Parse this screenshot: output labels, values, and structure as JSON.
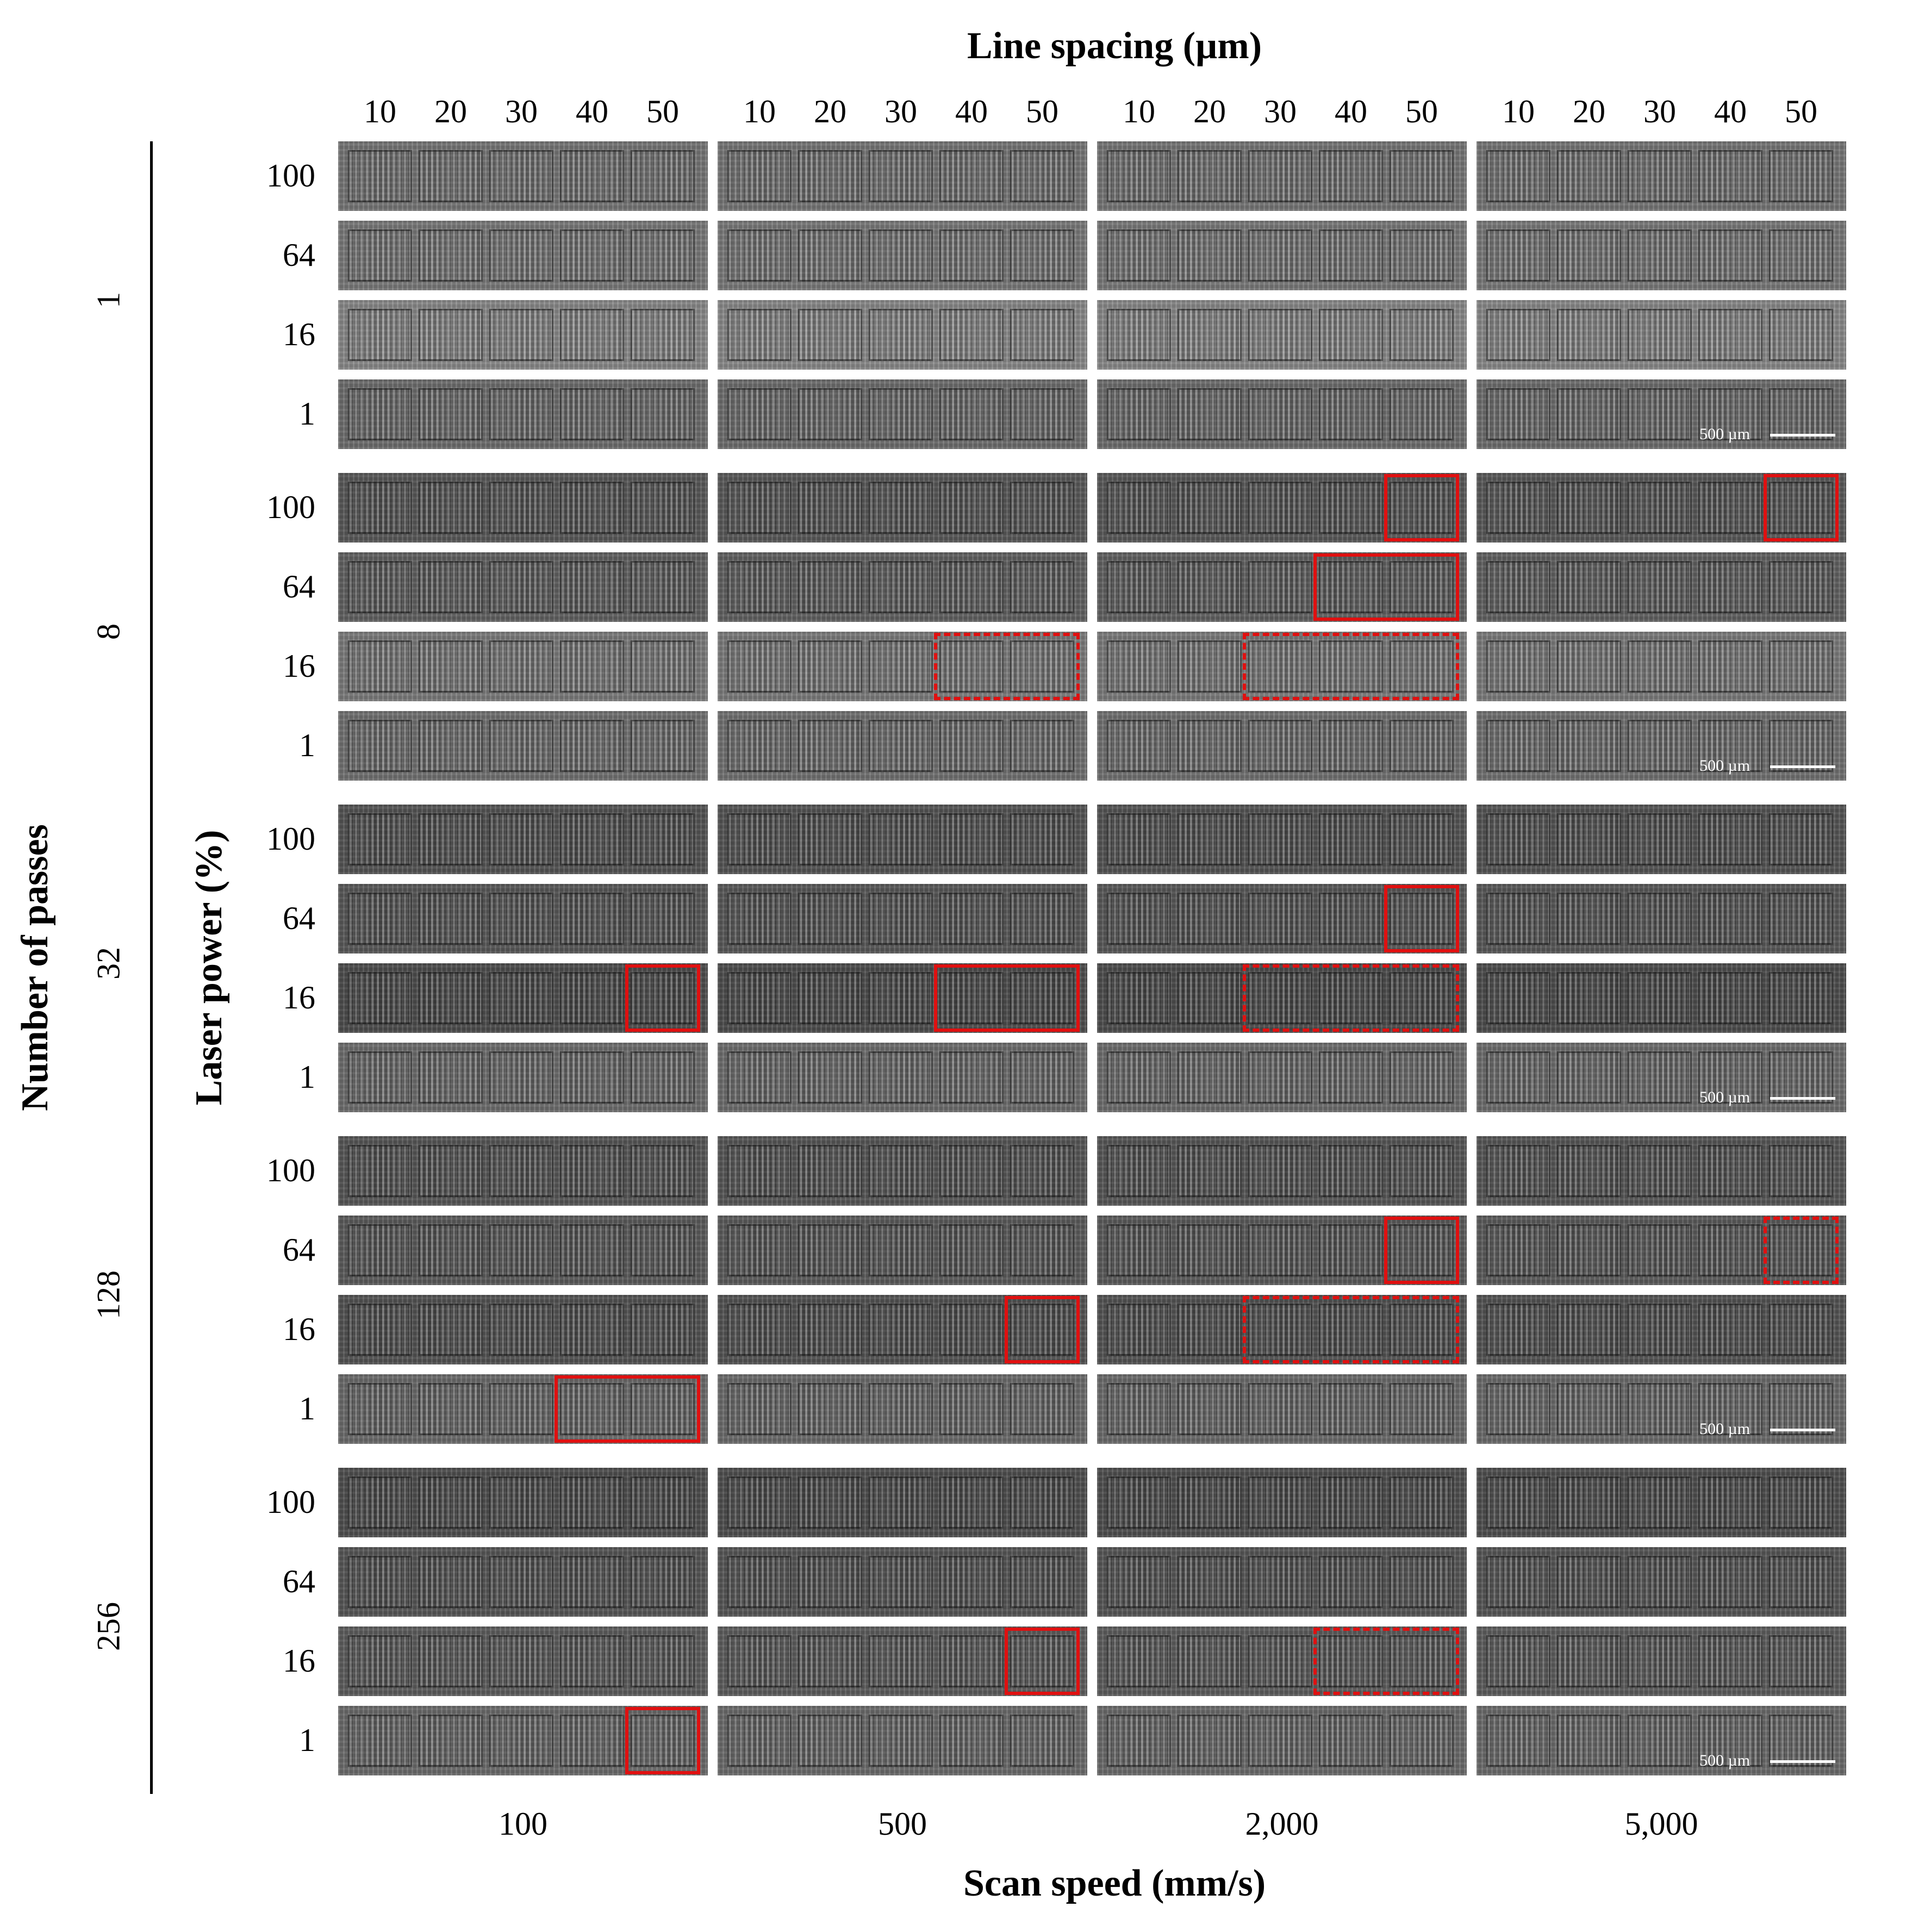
{
  "titles": {
    "top": "Line spacing (µm)",
    "bottom": "Scan speed (mm/s)",
    "left_outer": "Number of passes",
    "left_inner": "Laser power (%)"
  },
  "line_spacings": [
    "10",
    "20",
    "30",
    "40",
    "50"
  ],
  "scan_speeds": [
    "100",
    "500",
    "2,000",
    "5,000"
  ],
  "number_of_passes": [
    "1",
    "8",
    "32",
    "128",
    "256"
  ],
  "laser_powers": [
    "100",
    "64",
    "16",
    "1"
  ],
  "scale_bar_label": "500 µm",
  "highlight_legend": {
    "solid": "solid red box",
    "dashed": "dashed red box"
  },
  "highlights": [
    {
      "passes": "8",
      "power": "100",
      "speed": "2,000",
      "spacings": [
        "50"
      ],
      "style": "solid"
    },
    {
      "passes": "8",
      "power": "100",
      "speed": "5,000",
      "spacings": [
        "50"
      ],
      "style": "solid"
    },
    {
      "passes": "8",
      "power": "64",
      "speed": "2,000",
      "spacings": [
        "40",
        "50"
      ],
      "style": "solid"
    },
    {
      "passes": "8",
      "power": "16",
      "speed": "500",
      "spacings": [
        "40",
        "50"
      ],
      "style": "dashed"
    },
    {
      "passes": "8",
      "power": "16",
      "speed": "2,000",
      "spacings": [
        "30",
        "40",
        "50"
      ],
      "style": "dashed"
    },
    {
      "passes": "32",
      "power": "64",
      "speed": "2,000",
      "spacings": [
        "50"
      ],
      "style": "solid"
    },
    {
      "passes": "32",
      "power": "16",
      "speed": "100",
      "spacings": [
        "50"
      ],
      "style": "solid"
    },
    {
      "passes": "32",
      "power": "16",
      "speed": "500",
      "spacings": [
        "40",
        "50"
      ],
      "style": "solid"
    },
    {
      "passes": "32",
      "power": "16",
      "speed": "2,000",
      "spacings": [
        "30",
        "40",
        "50"
      ],
      "style": "dashed"
    },
    {
      "passes": "128",
      "power": "64",
      "speed": "2,000",
      "spacings": [
        "50"
      ],
      "style": "solid"
    },
    {
      "passes": "128",
      "power": "64",
      "speed": "5,000",
      "spacings": [
        "50"
      ],
      "style": "dashed"
    },
    {
      "passes": "128",
      "power": "16",
      "speed": "500",
      "spacings": [
        "50"
      ],
      "style": "solid"
    },
    {
      "passes": "128",
      "power": "16",
      "speed": "2,000",
      "spacings": [
        "30",
        "40",
        "50"
      ],
      "style": "dashed"
    },
    {
      "passes": "128",
      "power": "1",
      "speed": "100",
      "spacings": [
        "40",
        "50"
      ],
      "style": "solid"
    },
    {
      "passes": "256",
      "power": "16",
      "speed": "500",
      "spacings": [
        "50"
      ],
      "style": "solid"
    },
    {
      "passes": "256",
      "power": "16",
      "speed": "2,000",
      "spacings": [
        "40",
        "50"
      ],
      "style": "dashed"
    },
    {
      "passes": "256",
      "power": "1",
      "speed": "100",
      "spacings": [
        "50"
      ],
      "style": "solid"
    }
  ],
  "panel_tones": {
    "1": [
      "#777777",
      "#7a7a7a",
      "#8a8a8a",
      "#6f6f6f"
    ],
    "8": [
      "#5a5a5a",
      "#626262",
      "#7c7c7c",
      "#727272"
    ],
    "32": [
      "#555555",
      "#595959",
      "#4e4e4e",
      "#6e6e6e"
    ],
    "128": [
      "#585858",
      "#5c5c5c",
      "#545454",
      "#6c6c6c"
    ],
    "256": [
      "#505050",
      "#575757",
      "#5e5e5e",
      "#6c6c6c"
    ]
  }
}
